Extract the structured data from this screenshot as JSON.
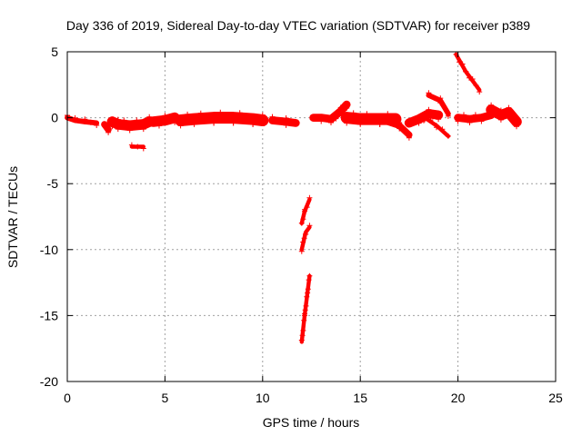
{
  "chart_data": {
    "type": "scatter",
    "title": "Day 336 of 2019, Sidereal Day-to-day VTEC variation (SDTVAR) for receiver p389",
    "xlabel": "GPS time / hours",
    "ylabel": "SDTVAR / TECUs",
    "xlim": [
      0,
      25
    ],
    "ylim": [
      -20,
      5
    ],
    "xticks": [
      0,
      5,
      10,
      15,
      20,
      25
    ],
    "yticks": [
      5,
      0,
      -5,
      -10,
      -15,
      -20
    ],
    "grid": true,
    "marker": "plus",
    "series": [
      {
        "name": "SDTVAR",
        "color": "#ff0000",
        "segments": [
          {
            "points": [
              [
                0.0,
                0.0
              ],
              [
                0.4,
                -0.2
              ],
              [
                0.9,
                -0.3
              ],
              [
                1.5,
                -0.4
              ]
            ],
            "spread": 0.4
          },
          {
            "points": [
              [
                1.9,
                -0.5
              ],
              [
                2.1,
                -0.9
              ]
            ],
            "spread": 0.5
          },
          {
            "points": [
              [
                2.3,
                -0.3
              ],
              [
                2.6,
                -0.5
              ],
              [
                3.2,
                -0.6
              ],
              [
                3.9,
                -0.5
              ],
              [
                4.2,
                -0.3
              ]
            ],
            "spread": 0.8
          },
          {
            "points": [
              [
                3.3,
                -2.2
              ],
              [
                3.9,
                -2.2
              ]
            ],
            "spread": 0.3
          },
          {
            "points": [
              [
                4.4,
                -0.3
              ],
              [
                5.0,
                -0.2
              ],
              [
                5.5,
                0.0
              ]
            ],
            "spread": 0.8
          },
          {
            "points": [
              [
                5.8,
                -0.2
              ],
              [
                6.5,
                -0.1
              ],
              [
                7.5,
                0.0
              ],
              [
                8.5,
                0.0
              ],
              [
                9.5,
                -0.1
              ],
              [
                10.0,
                -0.2
              ]
            ],
            "spread": 0.9
          },
          {
            "points": [
              [
                10.5,
                -0.2
              ],
              [
                11.2,
                -0.3
              ],
              [
                11.7,
                -0.4
              ]
            ],
            "spread": 0.6
          },
          {
            "points": [
              [
                12.0,
                -8.0
              ],
              [
                12.15,
                -7.1
              ],
              [
                12.4,
                -6.2
              ]
            ],
            "spread": 0.3
          },
          {
            "points": [
              [
                12.0,
                -10.0
              ],
              [
                12.2,
                -8.7
              ],
              [
                12.4,
                -8.3
              ]
            ],
            "spread": 0.3
          },
          {
            "points": [
              [
                12.0,
                -17.0
              ],
              [
                12.15,
                -15.0
              ],
              [
                12.4,
                -12.0
              ]
            ],
            "spread": 0.3
          },
          {
            "points": [
              [
                12.6,
                0.0
              ],
              [
                13.0,
                0.0
              ],
              [
                13.5,
                -0.1
              ],
              [
                14.0,
                0.5
              ],
              [
                14.3,
                1.0
              ]
            ],
            "spread": 0.6
          },
          {
            "points": [
              [
                14.3,
                0.0
              ],
              [
                15.0,
                -0.1
              ],
              [
                16.0,
                -0.1
              ],
              [
                16.8,
                -0.1
              ]
            ],
            "spread": 0.9
          },
          {
            "points": [
              [
                16.4,
                -0.3
              ],
              [
                17.0,
                -0.6
              ],
              [
                17.5,
                -1.3
              ]
            ],
            "spread": 0.5
          },
          {
            "points": [
              [
                17.5,
                -0.4
              ],
              [
                18.0,
                -0.1
              ],
              [
                18.5,
                0.3
              ],
              [
                19.0,
                0.2
              ]
            ],
            "spread": 0.7
          },
          {
            "points": [
              [
                18.3,
                0.0
              ],
              [
                18.9,
                -0.6
              ],
              [
                19.5,
                -1.4
              ]
            ],
            "spread": 0.3
          },
          {
            "points": [
              [
                18.5,
                1.7
              ],
              [
                19.1,
                1.3
              ],
              [
                19.5,
                0.3
              ]
            ],
            "spread": 0.4
          },
          {
            "points": [
              [
                19.9,
                4.8
              ],
              [
                20.4,
                3.5
              ],
              [
                21.1,
                2.1
              ]
            ],
            "spread": 0.3
          },
          {
            "points": [
              [
                20.0,
                0.0
              ],
              [
                20.6,
                -0.1
              ],
              [
                21.2,
                0.0
              ],
              [
                21.7,
                0.2
              ]
            ],
            "spread": 0.6
          },
          {
            "points": [
              [
                21.7,
                0.6
              ],
              [
                22.2,
                0.2
              ],
              [
                22.6,
                0.4
              ],
              [
                23.0,
                -0.3
              ]
            ],
            "spread": 0.8
          }
        ]
      }
    ]
  }
}
